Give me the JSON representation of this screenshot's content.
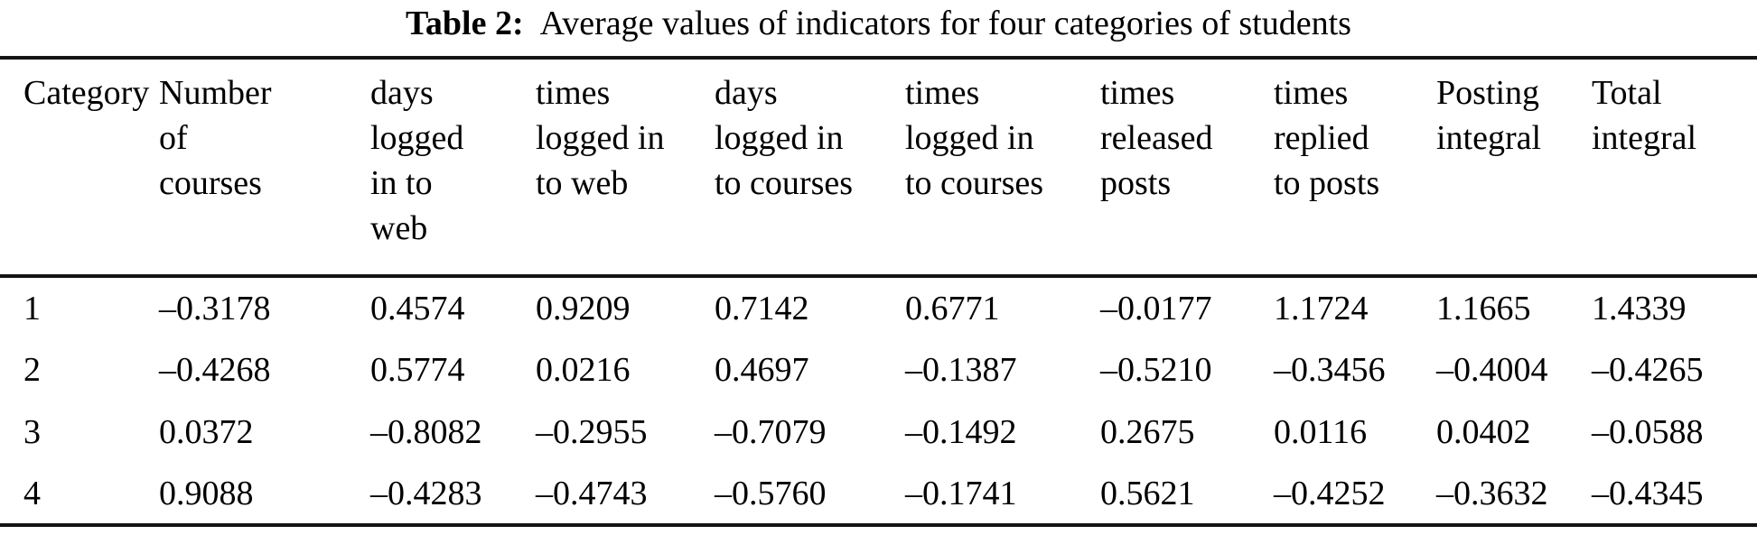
{
  "caption": {
    "label": "Table 2:",
    "text": "Average values of indicators for four categories of students"
  },
  "table": {
    "columns": [
      "Category",
      "Number\nof\ncourses",
      "days\nlogged\nin to\nweb",
      "times\nlogged in\nto web",
      "days\nlogged in\nto courses",
      "times\nlogged in\nto courses",
      "times\nreleased\nposts",
      "times\nreplied\nto posts",
      "Posting\nintegral",
      "Total\nintegral"
    ],
    "rows": [
      [
        "1",
        "–0.3178",
        "0.4574",
        "0.9209",
        "0.7142",
        "0.6771",
        "–0.0177",
        "1.1724",
        "1.1665",
        "1.4339"
      ],
      [
        "2",
        "–0.4268",
        "0.5774",
        "0.0216",
        "0.4697",
        "–0.1387",
        "–0.5210",
        "–0.3456",
        "–0.4004",
        "–0.4265"
      ],
      [
        "3",
        "0.0372",
        "–0.8082",
        "–0.2955",
        "–0.7079",
        "–0.1492",
        "0.2675",
        "0.0116",
        "0.0402",
        "–0.0588"
      ],
      [
        "4",
        "0.9088",
        "–0.4283",
        "–0.4743",
        "–0.5760",
        "–0.1741",
        "0.5621",
        "–0.4252",
        "–0.3632",
        "–0.4345"
      ]
    ]
  },
  "colors": {
    "text": "#000000",
    "rule": "#141414",
    "background": "#ffffff"
  }
}
